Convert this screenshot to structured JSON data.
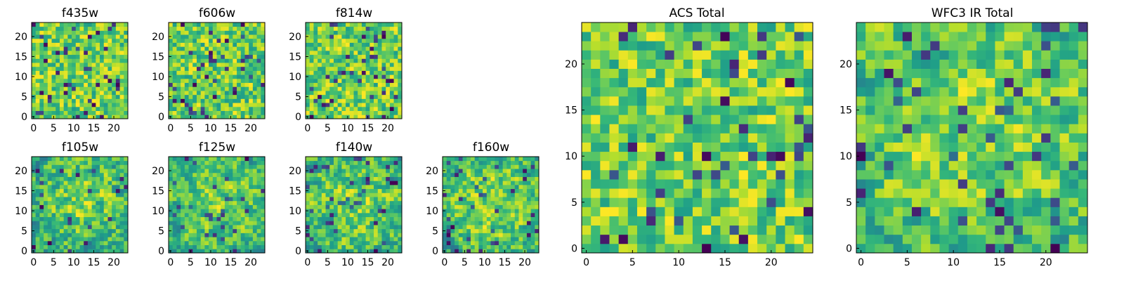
{
  "figure": {
    "description_free": true,
    "colormap": "viridis"
  },
  "chart_data": [
    {
      "type": "heatmap",
      "title": "f435w",
      "x_ticks": [
        0,
        5,
        10,
        15,
        20
      ],
      "y_ticks": [
        0,
        5,
        10,
        15,
        20
      ],
      "grid_size": 24,
      "seed": 11,
      "smoothness": 0,
      "xlim": [
        -0.5,
        23.5
      ],
      "ylim": [
        -0.5,
        23.5
      ]
    },
    {
      "type": "heatmap",
      "title": "f606w",
      "x_ticks": [
        0,
        5,
        10,
        15,
        20
      ],
      "y_ticks": [
        0,
        5,
        10,
        15,
        20
      ],
      "grid_size": 24,
      "seed": 23,
      "smoothness": 0,
      "xlim": [
        -0.5,
        23.5
      ],
      "ylim": [
        -0.5,
        23.5
      ]
    },
    {
      "type": "heatmap",
      "title": "f814w",
      "x_ticks": [
        0,
        5,
        10,
        15,
        20
      ],
      "y_ticks": [
        0,
        5,
        10,
        15,
        20
      ],
      "grid_size": 24,
      "seed": 37,
      "smoothness": 0,
      "xlim": [
        -0.5,
        23.5
      ],
      "ylim": [
        -0.5,
        23.5
      ]
    },
    {
      "type": "heatmap",
      "title": "f105w",
      "x_ticks": [
        0,
        5,
        10,
        15,
        20
      ],
      "y_ticks": [
        0,
        5,
        10,
        15,
        20
      ],
      "grid_size": 24,
      "seed": 41,
      "smoothness": 1,
      "xlim": [
        -0.5,
        23.5
      ],
      "ylim": [
        -0.5,
        23.5
      ]
    },
    {
      "type": "heatmap",
      "title": "f125w",
      "x_ticks": [
        0,
        5,
        10,
        15,
        20
      ],
      "y_ticks": [
        0,
        5,
        10,
        15,
        20
      ],
      "grid_size": 24,
      "seed": 53,
      "smoothness": 1,
      "xlim": [
        -0.5,
        23.5
      ],
      "ylim": [
        -0.5,
        23.5
      ]
    },
    {
      "type": "heatmap",
      "title": "f140w",
      "x_ticks": [
        0,
        5,
        10,
        15,
        20
      ],
      "y_ticks": [
        0,
        5,
        10,
        15,
        20
      ],
      "grid_size": 24,
      "seed": 67,
      "smoothness": 1,
      "xlim": [
        -0.5,
        23.5
      ],
      "ylim": [
        -0.5,
        23.5
      ]
    },
    {
      "type": "heatmap",
      "title": "f160w",
      "x_ticks": [
        0,
        5,
        10,
        15,
        20
      ],
      "y_ticks": [
        0,
        5,
        10,
        15,
        20
      ],
      "grid_size": 24,
      "seed": 79,
      "smoothness": 1,
      "xlim": [
        -0.5,
        23.5
      ],
      "ylim": [
        -0.5,
        23.5
      ]
    },
    {
      "type": "heatmap",
      "title": "ACS Total",
      "x_ticks": [
        0,
        5,
        10,
        15,
        20
      ],
      "y_ticks": [
        0,
        5,
        10,
        15,
        20
      ],
      "grid_size": 25,
      "seed": 97,
      "smoothness": 0,
      "xlim": [
        -0.5,
        24.5
      ],
      "ylim": [
        -0.5,
        24.5
      ]
    },
    {
      "type": "heatmap",
      "title": "WFC3 IR Total",
      "x_ticks": [
        0,
        5,
        10,
        15,
        20
      ],
      "y_ticks": [
        0,
        5,
        10,
        15,
        20
      ],
      "grid_size": 25,
      "seed": 131,
      "smoothness": 1,
      "xlim": [
        -0.5,
        24.5
      ],
      "ylim": [
        -0.5,
        24.5
      ]
    }
  ]
}
